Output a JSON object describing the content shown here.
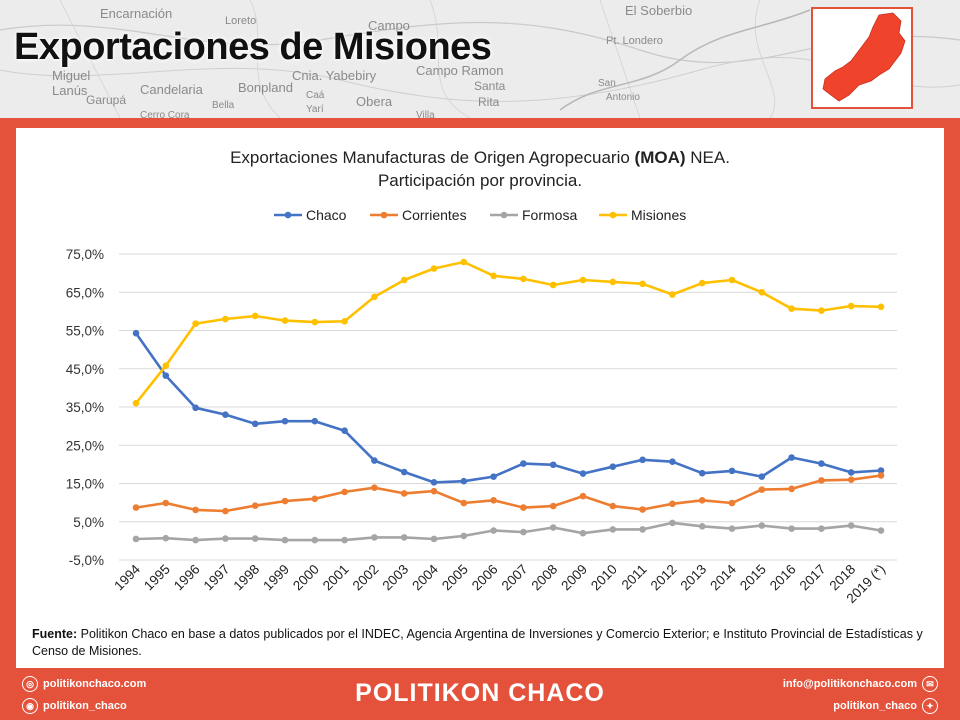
{
  "header": {
    "title": "Exportaciones de Misiones",
    "map_labels": [
      "Encarnación",
      "Loreto",
      "Campo",
      "El Soberbio",
      "Pt. Londero",
      "Miguel",
      "Lanús",
      "Candelaria",
      "Garupá",
      "Bonpland",
      "Cnia. Yabebiry",
      "Campo Ramon",
      "Santa",
      "Rita",
      "Obera",
      "Bella",
      "Caá",
      "Yarí",
      "San",
      "Antonio",
      "Cerro Cora",
      "Villa"
    ]
  },
  "chart_data": {
    "type": "line",
    "title_line1_pre": "Exportaciones Manufacturas de Origen Agropecuario ",
    "title_line1_bold": "(MOA)",
    "title_line1_post": " NEA.",
    "title_line2": "Participación por provincia.",
    "categories": [
      "1994",
      "1995",
      "1996",
      "1997",
      "1998",
      "1999",
      "2000",
      "2001",
      "2002",
      "2003",
      "2004",
      "2005",
      "2006",
      "2007",
      "2008",
      "2009",
      "2010",
      "2011",
      "2012",
      "2013",
      "2014",
      "2015",
      "2016",
      "2017",
      "2018",
      "2019 (*)"
    ],
    "y_ticks": [
      "75,0%",
      "65,0%",
      "55,0%",
      "45,0%",
      "35,0%",
      "25,0%",
      "15,0%",
      "5,0%",
      "-5,0%"
    ],
    "ylim": [
      -5,
      75
    ],
    "legend_position": "top",
    "grid": true,
    "series": [
      {
        "name": "Chaco",
        "color": "#4472c4",
        "values": [
          54.3,
          43.2,
          34.8,
          33.0,
          30.6,
          31.3,
          31.3,
          28.8,
          21.0,
          18.0,
          15.3,
          15.6,
          16.8,
          20.2,
          19.9,
          17.6,
          19.4,
          21.2,
          20.7,
          17.7,
          18.3,
          16.8,
          21.8,
          20.2,
          17.9,
          18.4
        ]
      },
      {
        "name": "Corrientes",
        "color": "#ed7d31",
        "values": [
          8.7,
          9.9,
          8.1,
          7.8,
          9.2,
          10.4,
          11.0,
          12.8,
          13.9,
          12.4,
          13.0,
          9.9,
          10.6,
          8.7,
          9.1,
          11.7,
          9.1,
          8.2,
          9.7,
          10.6,
          9.9,
          13.4,
          13.6,
          15.8,
          16.0,
          17.1
        ]
      },
      {
        "name": "Formosa",
        "color": "#a5a5a5",
        "values": [
          0.5,
          0.7,
          0.2,
          0.6,
          0.6,
          0.2,
          0.2,
          0.2,
          0.9,
          0.9,
          0.5,
          1.3,
          2.7,
          2.3,
          3.5,
          2.0,
          3.0,
          3.0,
          4.7,
          3.8,
          3.2,
          4.0,
          3.2,
          3.2,
          4.0,
          2.7
        ]
      },
      {
        "name": "Misiones",
        "color": "#ffc000",
        "values": [
          36.0,
          45.8,
          56.8,
          58.0,
          58.8,
          57.6,
          57.2,
          57.4,
          63.8,
          68.2,
          71.2,
          72.9,
          69.3,
          68.5,
          66.9,
          68.2,
          67.7,
          67.2,
          64.4,
          67.4,
          68.2,
          65.0,
          60.7,
          60.2,
          61.4,
          61.2
        ]
      }
    ]
  },
  "source": {
    "label": "Fuente:",
    "text": " Politikon Chaco en base a datos publicados por el INDEC, Agencia Argentina de Inversiones y Comercio Exterior; e Instituto Provincial de Estadísticas y Censo de Misiones."
  },
  "footer": {
    "brand": "POLITIKON CHACO",
    "website": "politikonchaco.com",
    "instagram": "politikon_chaco",
    "email": "info@politikonchaco.com",
    "twitter": "politikon_chaco"
  }
}
